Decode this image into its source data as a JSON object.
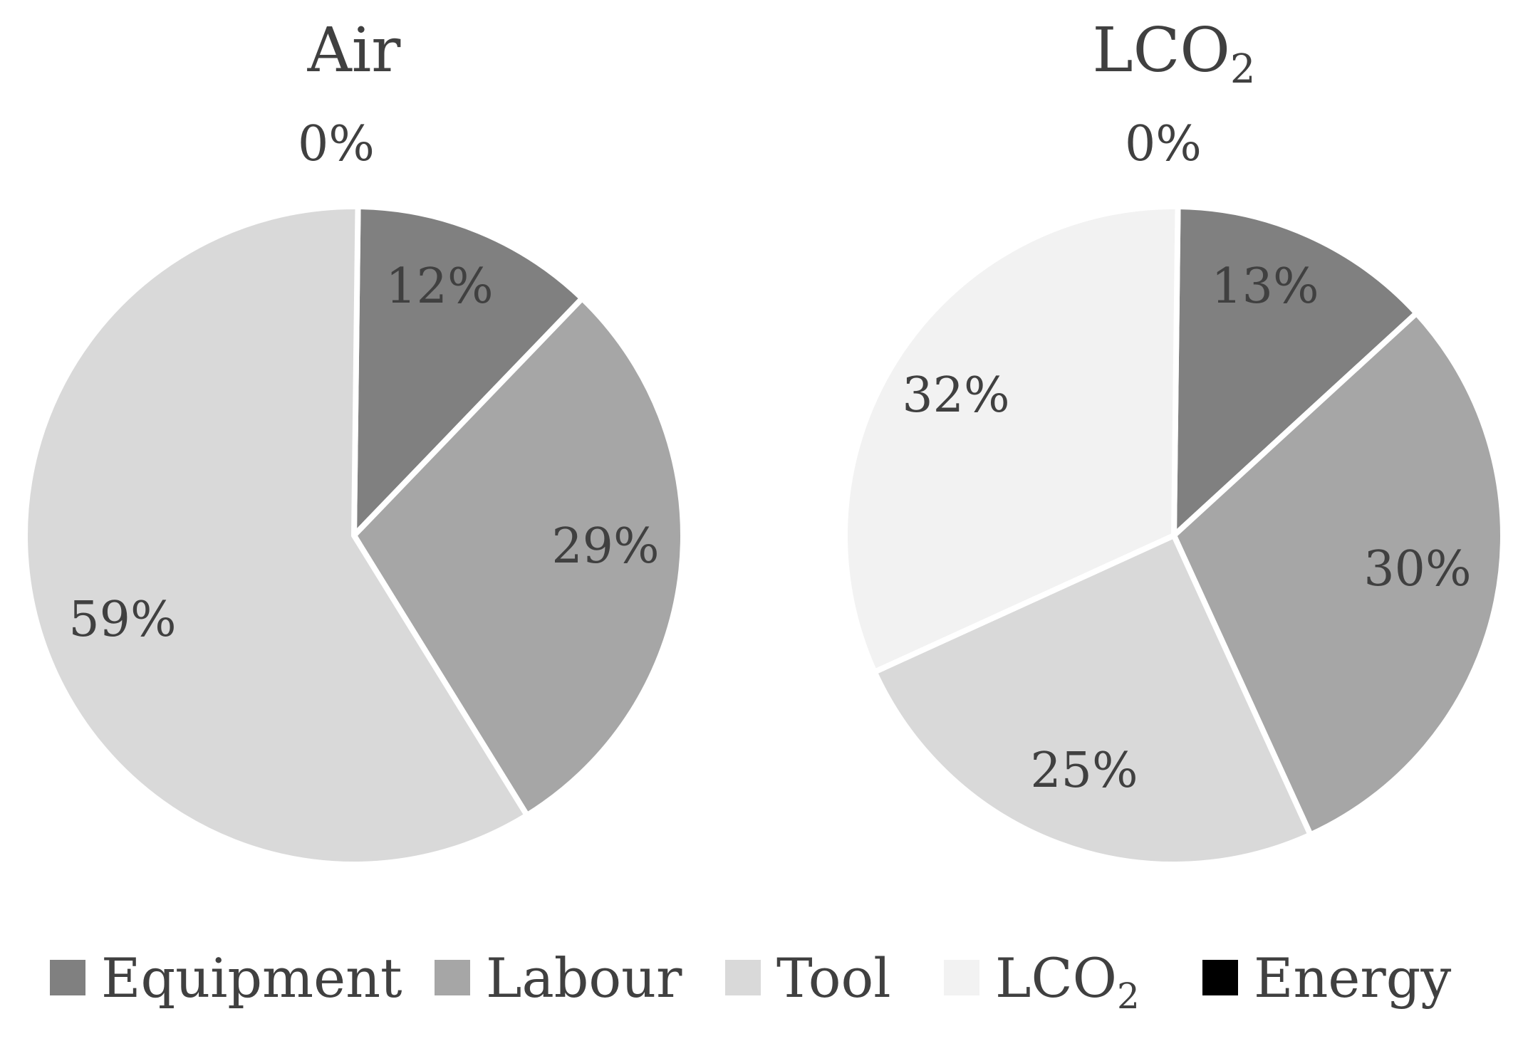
{
  "chart_data": [
    {
      "type": "pie",
      "title": "Air",
      "categories": [
        "Equipment",
        "Labour",
        "Tool",
        "LCO2",
        "Energy"
      ],
      "values": [
        12,
        29,
        59,
        0,
        0
      ],
      "labels": [
        "12%",
        "29%",
        "59%",
        "",
        "0%"
      ]
    },
    {
      "type": "pie",
      "title": "LCO2",
      "categories": [
        "Equipment",
        "Labour",
        "Tool",
        "LCO2",
        "Energy"
      ],
      "values": [
        13,
        30,
        25,
        32,
        0
      ],
      "labels": [
        "13%",
        "30%",
        "25%",
        "32%",
        "0%"
      ]
    }
  ],
  "legend": {
    "position": "bottom",
    "items": [
      {
        "label": "Equipment",
        "color": "#808080"
      },
      {
        "label": "Labour",
        "color": "#a6a6a6"
      },
      {
        "label": "Tool",
        "color": "#d9d9d9"
      },
      {
        "label": "LCO2",
        "color": "#f2f2f2"
      },
      {
        "label": "Energy",
        "color": "#000000"
      }
    ]
  },
  "colors": {
    "Equipment": "#808080",
    "Labour": "#a6a6a6",
    "Tool": "#d9d9d9",
    "LCO2": "#f2f2f2",
    "Energy": "#000000"
  }
}
